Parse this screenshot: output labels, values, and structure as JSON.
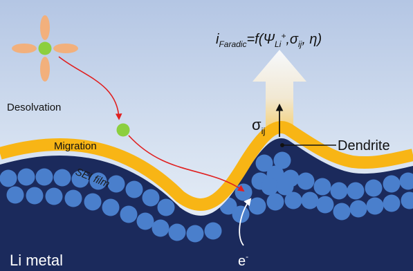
{
  "labels": {
    "desolvation": "Desolvation",
    "migration": "Migration",
    "sei_film": "SEI film",
    "dendrite": "Dendrite",
    "li_metal": "Li metal",
    "stress_symbol": "σ",
    "stress_subscript": "ij",
    "electron": "e",
    "electron_superscript": "-"
  },
  "equation": {
    "i": "i",
    "i_sub": "Faradic",
    "eq_open": "=f(Ψ",
    "psi_sub": "Li",
    "psi_sup": "+",
    "comma_sigma": ",σ",
    "sigma_sub": "ij",
    "tail": ", η)"
  },
  "colors": {
    "background_top": "#b4c6e4",
    "background_bottom": "#eef3f9",
    "metal": "#1b2a5c",
    "sei": "#f8b515",
    "particle": "#4a7fcc",
    "ion": "#8ccf3f",
    "solvent": "#f2b07c",
    "migration_path": "#e02020",
    "electron_path": "#ffffff"
  }
}
